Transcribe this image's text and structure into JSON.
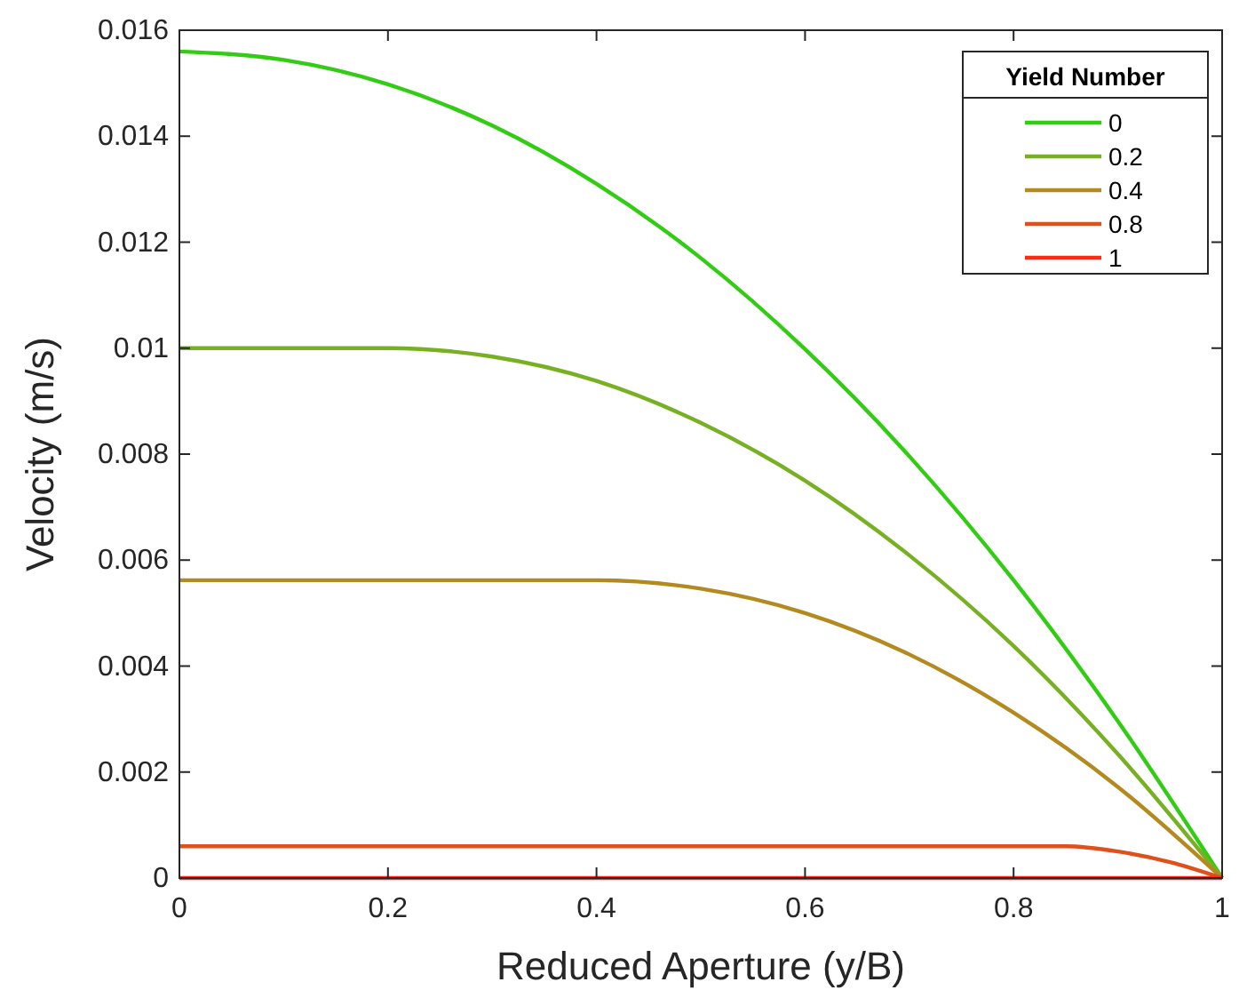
{
  "chart_data": {
    "type": "line",
    "xlabel": "Reduced Aperture (y/B)",
    "ylabel": "Velocity (m/s)",
    "legend_title": "Yield Number",
    "legend": "top right",
    "grid": false,
    "xlim": [
      0,
      1
    ],
    "xticks": [
      0,
      0.2,
      0.4,
      0.6,
      0.8,
      1
    ],
    "ylim": [
      0,
      0.016
    ],
    "yticks": [
      0,
      0.002,
      0.004,
      0.006,
      0.008,
      0.01,
      0.012,
      0.014,
      0.016
    ],
    "series": [
      {
        "name": "0",
        "color": "#33cc14",
        "x": [
          0,
          0.1,
          0.2,
          0.3,
          0.4,
          0.5,
          0.6,
          0.7,
          0.8,
          0.9,
          1
        ],
        "values": [
          0.0156,
          0.01544,
          0.01498,
          0.0142,
          0.0131,
          0.0117,
          0.00998,
          0.00796,
          0.00562,
          0.00296,
          0
        ]
      },
      {
        "name": "0.2",
        "color": "#77b022",
        "x": [
          0,
          0.2,
          0.3,
          0.4,
          0.5,
          0.6,
          0.7,
          0.8,
          0.9,
          1
        ],
        "values": [
          0.01,
          0.01,
          0.00984,
          0.00938,
          0.00859,
          0.0075,
          0.00609,
          0.00438,
          0.00234,
          0
        ]
      },
      {
        "name": "0.4",
        "color": "#b38a20",
        "x": [
          0,
          0.4,
          0.5,
          0.6,
          0.7,
          0.8,
          0.9,
          1
        ],
        "values": [
          0.00562,
          0.00562,
          0.00546,
          0.005,
          0.00422,
          0.00312,
          0.00172,
          0
        ]
      },
      {
        "name": "0.8",
        "color": "#e0501a",
        "x": [
          0,
          0.8,
          0.85,
          0.9,
          0.95,
          1
        ],
        "values": [
          0.0006,
          0.0006,
          0.0006,
          0.0005,
          0.0003,
          0
        ]
      },
      {
        "name": "1",
        "color": "#ff2a14",
        "x": [
          0,
          1
        ],
        "values": [
          0,
          0
        ]
      }
    ]
  }
}
